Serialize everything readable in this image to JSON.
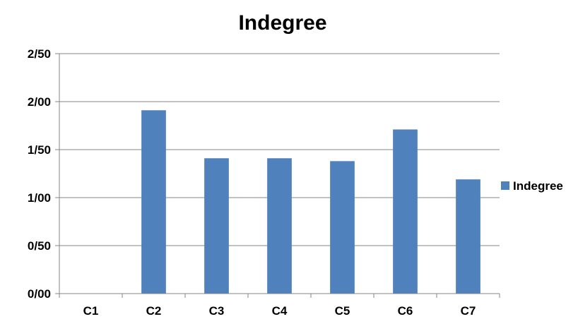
{
  "chart_data": {
    "type": "bar",
    "title": "Indegree",
    "xlabel": "",
    "ylabel": "",
    "categories": [
      "C1",
      "C2",
      "C3",
      "C4",
      "C5",
      "C6",
      "C7"
    ],
    "series": [
      {
        "name": "Indegree",
        "values": [
          0,
          1.91,
          1.41,
          1.41,
          1.38,
          1.71,
          1.19
        ],
        "color": "#4F81BD"
      }
    ],
    "ylim": [
      0,
      2.5
    ],
    "yticks": [
      0,
      0.5,
      1,
      1.5,
      2,
      2.5
    ],
    "ytick_labels": [
      "0/00",
      "0/50",
      "1/00",
      "1/50",
      "2/00",
      "2/50"
    ],
    "grid": true,
    "legend_position": "right"
  }
}
